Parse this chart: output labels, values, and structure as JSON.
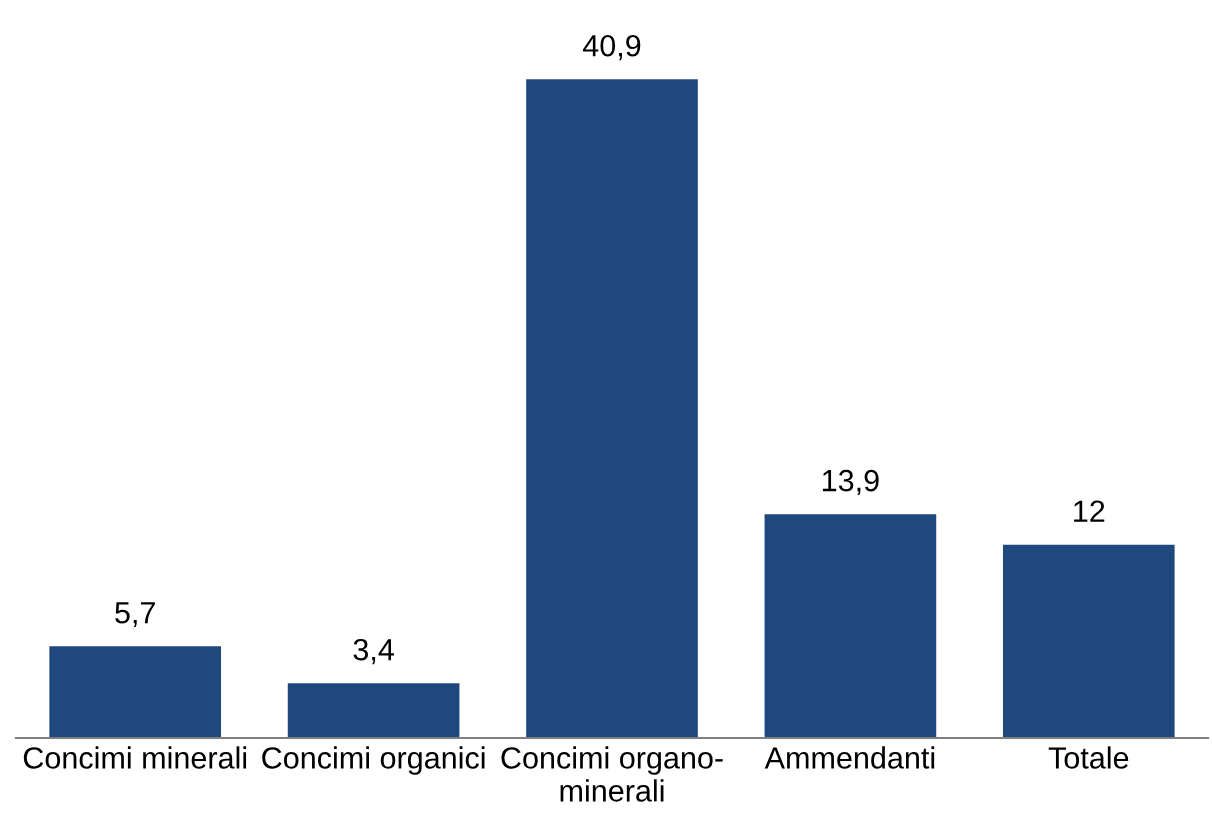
{
  "chart_data": {
    "type": "bar",
    "categories": [
      "Concimi minerali",
      "Concimi organici",
      "Concimi organo-\nminerali",
      "Ammendanti",
      "Totale"
    ],
    "values": [
      5.7,
      3.4,
      40.9,
      13.9,
      12
    ],
    "value_labels": [
      "5,7",
      "3,4",
      "40,9",
      "13,9",
      "12"
    ],
    "color": "#1f497d",
    "grid": false,
    "legend": false
  }
}
